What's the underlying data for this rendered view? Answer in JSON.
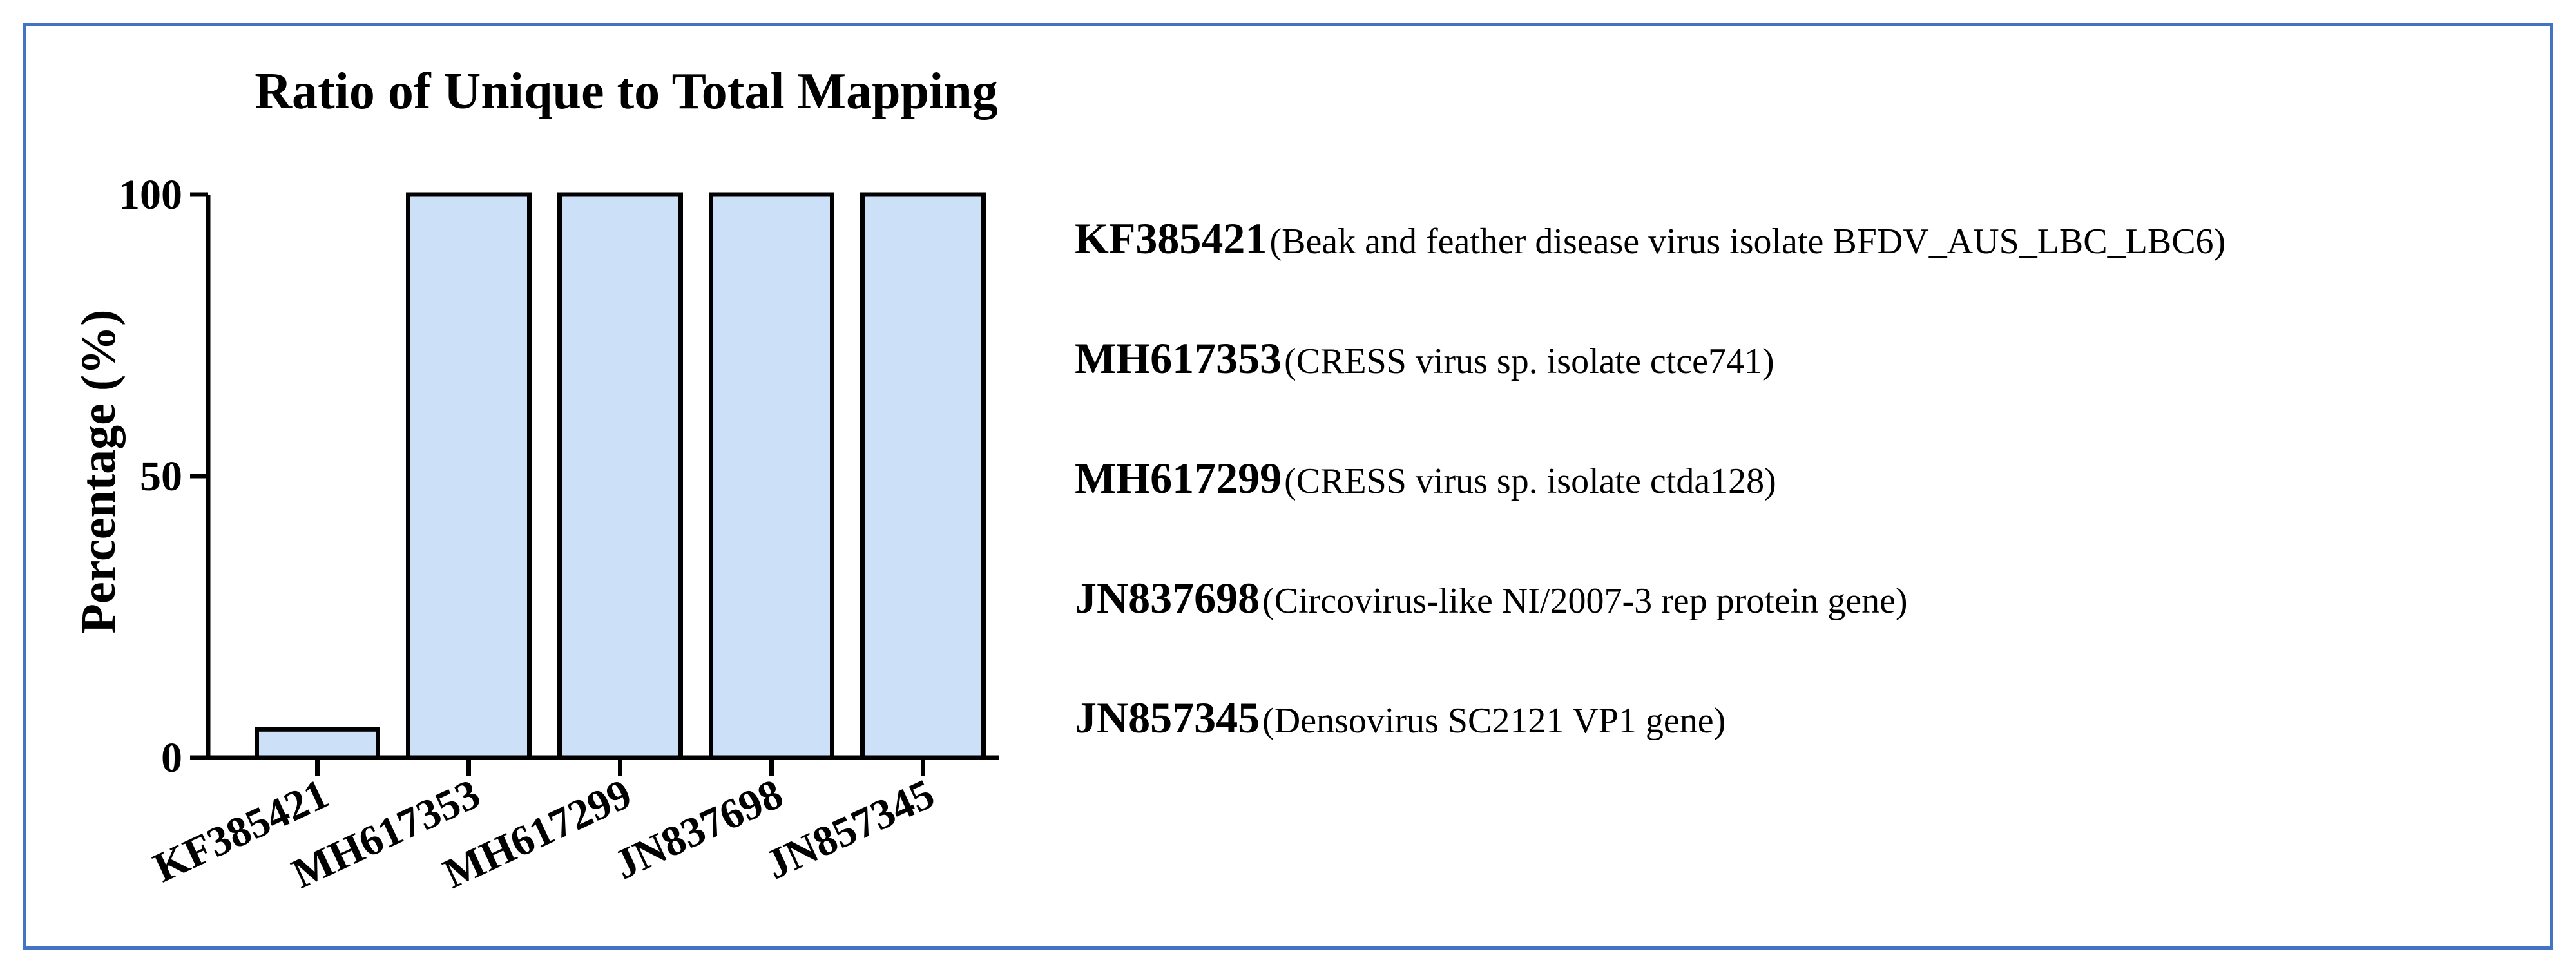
{
  "chart_data": {
    "type": "bar",
    "title": "Ratio of Unique to Total Mapping",
    "xlabel": "",
    "ylabel": "Percentage (%)",
    "categories": [
      "KF385421",
      "MH617353",
      "MH617299",
      "JN837698",
      "JN857345"
    ],
    "values": [
      5,
      100,
      100,
      100,
      100
    ],
    "ylim": [
      0,
      100
    ],
    "yticks": [
      "0",
      "50",
      "100"
    ],
    "grid": false,
    "bar_color": "#CCE0F7",
    "bar_edge_color": "#000000"
  },
  "legend": {
    "items": [
      {
        "id": "KF385421",
        "description": "(Beak and feather disease virus isolate BFDV_AUS_LBC_LBC6)"
      },
      {
        "id": "MH617353",
        "description": "(CRESS virus sp. isolate ctce741)"
      },
      {
        "id": "MH617299",
        "description": "(CRESS virus sp. isolate ctda128)"
      },
      {
        "id": "JN837698",
        "description": "(Circovirus-like NI/2007-3 rep protein gene)"
      },
      {
        "id": "JN857345",
        "description": "(Densovirus SC2121 VP1 gene)"
      }
    ]
  },
  "colors": {
    "frame_border": "#4472C4"
  }
}
